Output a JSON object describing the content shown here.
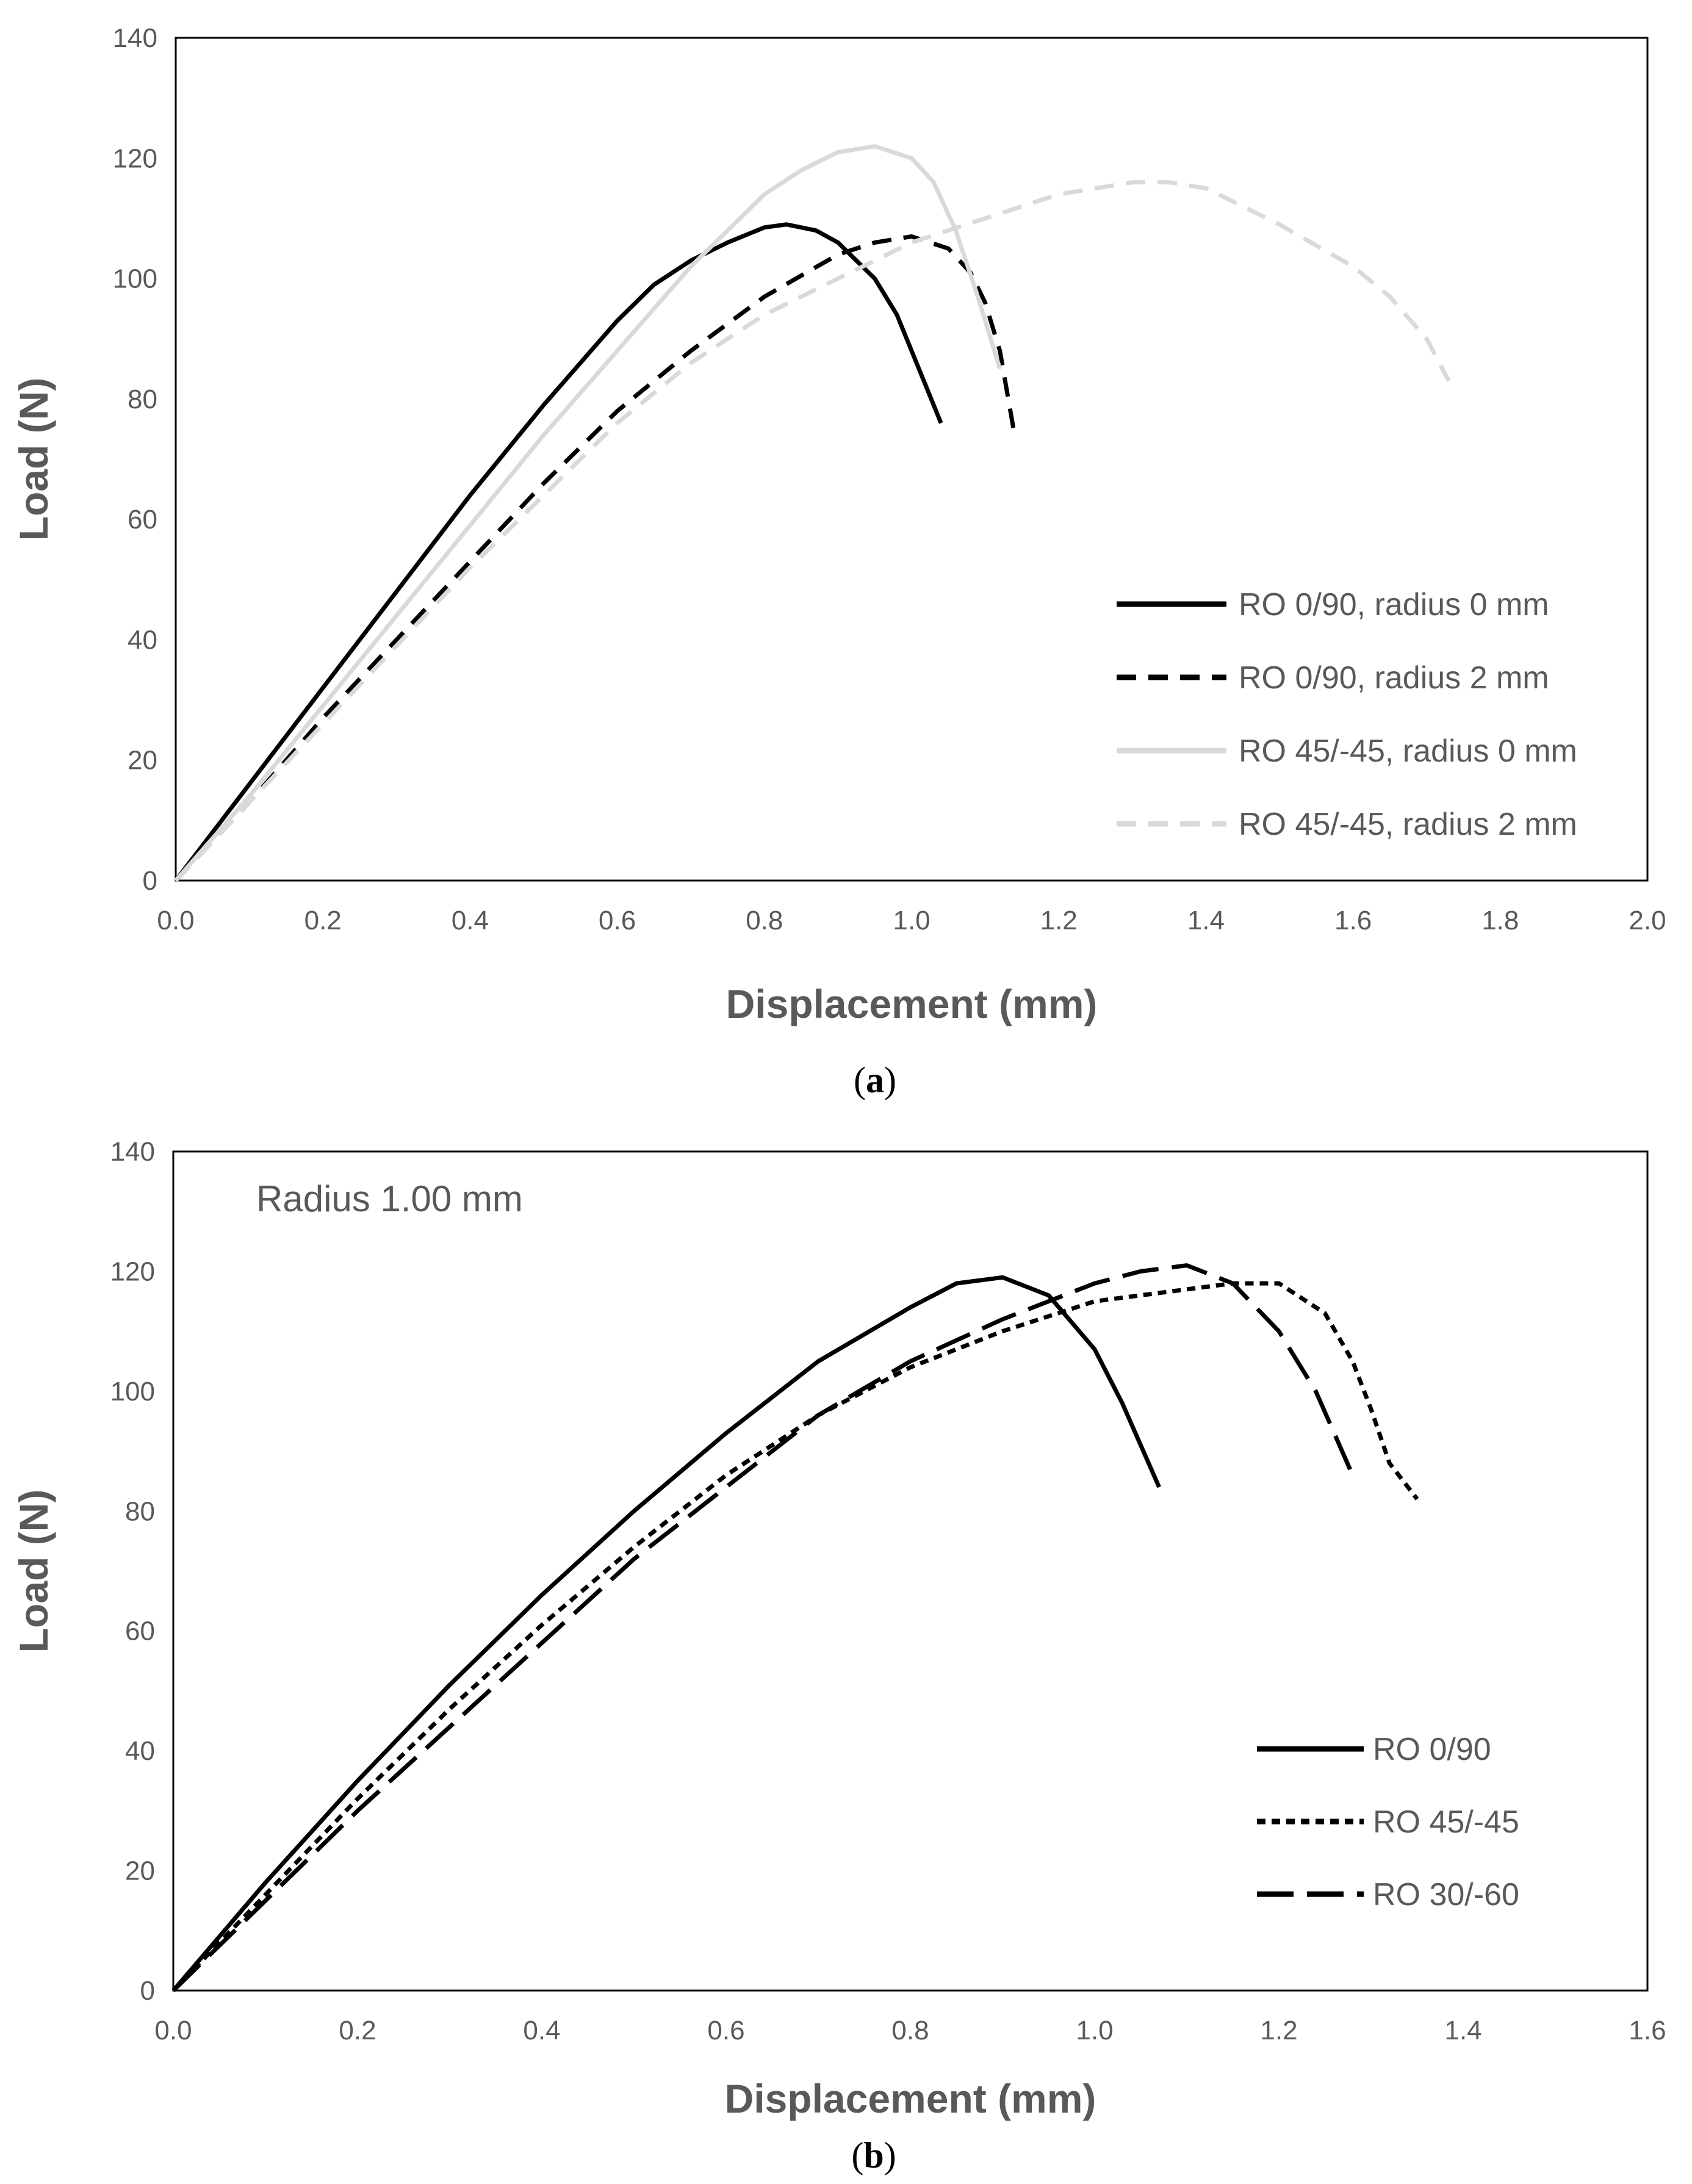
{
  "chart_data": [
    {
      "type": "line",
      "id": "a",
      "caption_open": "(",
      "caption_letter": "a",
      "caption_close": ")",
      "title": "",
      "annotation": "",
      "xlabel": "Displacement (mm)",
      "ylabel": "Load (N)",
      "xlim": [
        0,
        2.0
      ],
      "ylim": [
        0,
        140
      ],
      "xticks": [
        "0.0",
        "0.2",
        "0.4",
        "0.6",
        "0.8",
        "1.0",
        "1.2",
        "1.4",
        "1.6",
        "1.8",
        "2.0"
      ],
      "yticks": [
        "0",
        "20",
        "40",
        "60",
        "80",
        "100",
        "120",
        "140"
      ],
      "legend_position": "center-right",
      "series": [
        {
          "name": "RO 0/90, radius 0 mm",
          "color": "#000000",
          "dash": "solid",
          "x": [
            0,
            0.1,
            0.2,
            0.3,
            0.4,
            0.5,
            0.6,
            0.65,
            0.7,
            0.75,
            0.8,
            0.83,
            0.87,
            0.9,
            0.95,
            0.98,
            1.0,
            1.02,
            1.04
          ],
          "y": [
            0,
            16,
            32,
            48,
            64,
            79,
            93,
            99,
            103,
            106,
            108.5,
            109,
            108,
            106,
            100,
            94,
            88,
            82,
            76
          ]
        },
        {
          "name": "RO 0/90, radius 2 mm",
          "color": "#000000",
          "dash": "dashed",
          "x": [
            0,
            0.1,
            0.2,
            0.3,
            0.4,
            0.5,
            0.6,
            0.7,
            0.8,
            0.9,
            0.95,
            1.0,
            1.05,
            1.08,
            1.1,
            1.12,
            1.14
          ],
          "y": [
            0,
            13,
            27,
            40,
            53,
            66,
            78,
            88,
            97,
            104,
            106,
            107,
            105,
            101,
            96,
            88,
            74
          ]
        },
        {
          "name": "RO 45/-45, radius 0 mm",
          "color": "#d9d9d9",
          "dash": "solid",
          "x": [
            0,
            0.1,
            0.2,
            0.3,
            0.4,
            0.5,
            0.6,
            0.7,
            0.8,
            0.85,
            0.9,
            0.95,
            1.0,
            1.03,
            1.06,
            1.09,
            1.12
          ],
          "y": [
            0,
            14,
            29,
            44,
            59,
            74,
            88,
            102,
            114,
            118,
            121,
            122,
            120,
            116,
            108,
            97,
            85
          ]
        },
        {
          "name": "RO 45/-45, radius 2 mm",
          "color": "#d9d9d9",
          "dash": "dashed",
          "x": [
            0,
            0.1,
            0.2,
            0.3,
            0.4,
            0.5,
            0.6,
            0.7,
            0.8,
            0.9,
            1.0,
            1.1,
            1.2,
            1.3,
            1.35,
            1.4,
            1.5,
            1.6,
            1.65,
            1.7,
            1.73
          ],
          "y": [
            0,
            13,
            26,
            39,
            52,
            64,
            76,
            86,
            94,
            100,
            106,
            110,
            114,
            116,
            116,
            115,
            109,
            102,
            97,
            90,
            83
          ]
        }
      ]
    },
    {
      "type": "line",
      "id": "b",
      "caption_open": "(",
      "caption_letter": "b",
      "caption_close": ")",
      "title": "",
      "annotation": "Radius 1.00 mm",
      "xlabel": "Displacement (mm)",
      "ylabel": "Load (N)",
      "xlim": [
        0,
        1.6
      ],
      "ylim": [
        0,
        140
      ],
      "xticks": [
        "0.0",
        "0.2",
        "0.4",
        "0.6",
        "0.8",
        "1.0",
        "1.2",
        "1.4",
        "1.6"
      ],
      "yticks": [
        "0",
        "20",
        "40",
        "60",
        "80",
        "100",
        "120",
        "140"
      ],
      "legend_position": "bottom-right",
      "series": [
        {
          "name": "RO 0/90",
          "color": "#000000",
          "dash": "solid",
          "x": [
            0,
            0.1,
            0.2,
            0.3,
            0.4,
            0.5,
            0.6,
            0.7,
            0.8,
            0.85,
            0.9,
            0.95,
            1.0,
            1.03,
            1.05,
            1.07
          ],
          "y": [
            0,
            18,
            35,
            51,
            66,
            80,
            93,
            105,
            114,
            118,
            119,
            116,
            107,
            98,
            91,
            84
          ]
        },
        {
          "name": "RO 45/-45",
          "color": "#000000",
          "dash": "dotted",
          "x": [
            0,
            0.1,
            0.2,
            0.3,
            0.4,
            0.5,
            0.6,
            0.7,
            0.8,
            0.9,
            1.0,
            1.1,
            1.15,
            1.2,
            1.25,
            1.28,
            1.3,
            1.32,
            1.35
          ],
          "y": [
            0,
            16,
            32,
            47,
            61,
            74,
            86,
            96,
            104,
            110,
            115,
            117,
            118,
            118,
            113,
            105,
            97,
            88,
            82
          ]
        },
        {
          "name": "RO 30/-60",
          "color": "#000000",
          "dash": "longdash",
          "x": [
            0,
            0.1,
            0.2,
            0.3,
            0.4,
            0.5,
            0.6,
            0.7,
            0.8,
            0.9,
            1.0,
            1.05,
            1.1,
            1.15,
            1.2,
            1.24,
            1.26,
            1.28
          ],
          "y": [
            0,
            15,
            30,
            44,
            58,
            72,
            84,
            96,
            105,
            112,
            118,
            120,
            121,
            118,
            110,
            100,
            93,
            86
          ]
        }
      ]
    }
  ]
}
